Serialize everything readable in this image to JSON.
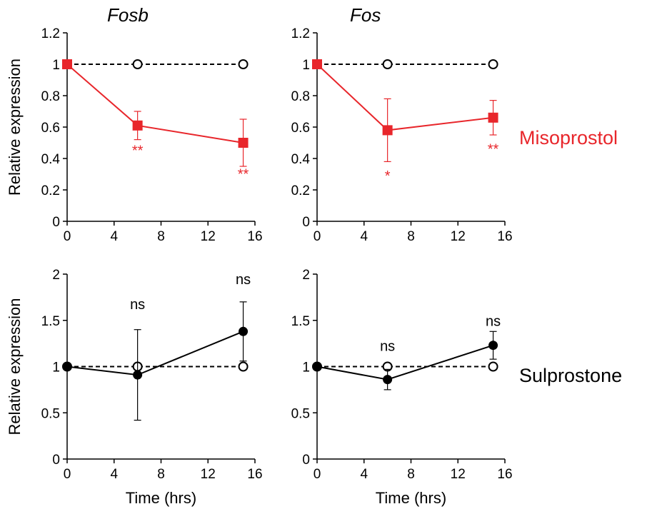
{
  "chart_data": [
    {
      "type": "line",
      "title": "Fosb",
      "xlabel": "",
      "ylabel": "Relative expression",
      "xlim": [
        0,
        16
      ],
      "ylim": [
        0,
        1.2
      ],
      "xticks": [
        "0",
        "4",
        "8",
        "12",
        "16"
      ],
      "yticks": [
        "0",
        "0.2",
        "0.4",
        "0.6",
        "0.8",
        "1",
        "1.2"
      ],
      "grid": false,
      "series": [
        {
          "style": "dashed",
          "marker": "open-circle",
          "color": "#000000",
          "x": [
            0,
            6,
            15
          ],
          "y": [
            1.0,
            1.0,
            1.0
          ],
          "err": [
            0,
            0,
            0
          ]
        },
        {
          "style": "solid",
          "marker": "filled-square",
          "color": "#e8262b",
          "x": [
            0,
            6,
            15
          ],
          "y": [
            1.0,
            0.61,
            0.5
          ],
          "err": [
            0,
            0.09,
            0.15
          ]
        }
      ],
      "annotations": [
        {
          "text": "**",
          "x": 6,
          "y": 0.42,
          "color": "#e8262b"
        },
        {
          "text": "**",
          "x": 15,
          "y": 0.27,
          "color": "#e8262b"
        }
      ]
    },
    {
      "type": "line",
      "title": "Fos",
      "xlabel": "",
      "ylabel": "",
      "xlim": [
        0,
        16
      ],
      "ylim": [
        0,
        1.2
      ],
      "xticks": [
        "0",
        "4",
        "8",
        "12",
        "16"
      ],
      "yticks": [
        "0",
        "0.2",
        "0.4",
        "0.6",
        "0.8",
        "1",
        "1.2"
      ],
      "grid": false,
      "series": [
        {
          "style": "dashed",
          "marker": "open-circle",
          "color": "#000000",
          "x": [
            0,
            6,
            15
          ],
          "y": [
            1.0,
            1.0,
            1.0
          ],
          "err": [
            0,
            0,
            0
          ]
        },
        {
          "style": "solid",
          "marker": "filled-square",
          "color": "#e8262b",
          "x": [
            0,
            6,
            15
          ],
          "y": [
            1.0,
            0.58,
            0.66
          ],
          "err": [
            0,
            0.2,
            0.11
          ]
        }
      ],
      "annotations": [
        {
          "text": "*",
          "x": 6,
          "y": 0.26,
          "color": "#e8262b"
        },
        {
          "text": "**",
          "x": 15,
          "y": 0.43,
          "color": "#e8262b"
        }
      ]
    },
    {
      "type": "line",
      "title": "",
      "xlabel": "Time (hrs)",
      "ylabel": "Relative expression",
      "xlim": [
        0,
        16
      ],
      "ylim": [
        0,
        2
      ],
      "xticks": [
        "0",
        "4",
        "8",
        "12",
        "16"
      ],
      "yticks": [
        "0",
        "0.5",
        "1",
        "1.5",
        "2"
      ],
      "grid": false,
      "series": [
        {
          "style": "dashed",
          "marker": "open-circle",
          "color": "#000000",
          "x": [
            0,
            6,
            15
          ],
          "y": [
            1.0,
            1.0,
            1.0
          ],
          "err": [
            0,
            0,
            0
          ]
        },
        {
          "style": "solid",
          "marker": "filled-circle",
          "color": "#000000",
          "x": [
            0,
            6,
            15
          ],
          "y": [
            1.0,
            0.91,
            1.38
          ],
          "err": [
            0,
            0.49,
            0.32
          ]
        }
      ],
      "annotations": [
        {
          "text": "ns",
          "x": 6,
          "y": 1.62,
          "color": "#000000"
        },
        {
          "text": "ns",
          "x": 15,
          "y": 1.89,
          "color": "#000000"
        }
      ]
    },
    {
      "type": "line",
      "title": "",
      "xlabel": "Time (hrs)",
      "ylabel": "",
      "xlim": [
        0,
        16
      ],
      "ylim": [
        0,
        2
      ],
      "xticks": [
        "0",
        "4",
        "8",
        "12",
        "16"
      ],
      "yticks": [
        "0",
        "0.5",
        "1",
        "1.5",
        "2"
      ],
      "grid": false,
      "series": [
        {
          "style": "dashed",
          "marker": "open-circle",
          "color": "#000000",
          "x": [
            0,
            6,
            15
          ],
          "y": [
            1.0,
            1.0,
            1.0
          ],
          "err": [
            0,
            0,
            0
          ]
        },
        {
          "style": "solid",
          "marker": "filled-circle",
          "color": "#000000",
          "x": [
            0,
            6,
            15
          ],
          "y": [
            1.0,
            0.86,
            1.23
          ],
          "err": [
            0,
            0.11,
            0.15
          ]
        }
      ],
      "annotations": [
        {
          "text": "ns",
          "x": 6,
          "y": 1.17,
          "color": "#000000"
        },
        {
          "text": "ns",
          "x": 15,
          "y": 1.44,
          "color": "#000000"
        }
      ]
    }
  ],
  "row_labels": [
    {
      "text": "Misoprostol",
      "color": "#e8262b"
    },
    {
      "text": "Sulprostone",
      "color": "#000000"
    }
  ]
}
